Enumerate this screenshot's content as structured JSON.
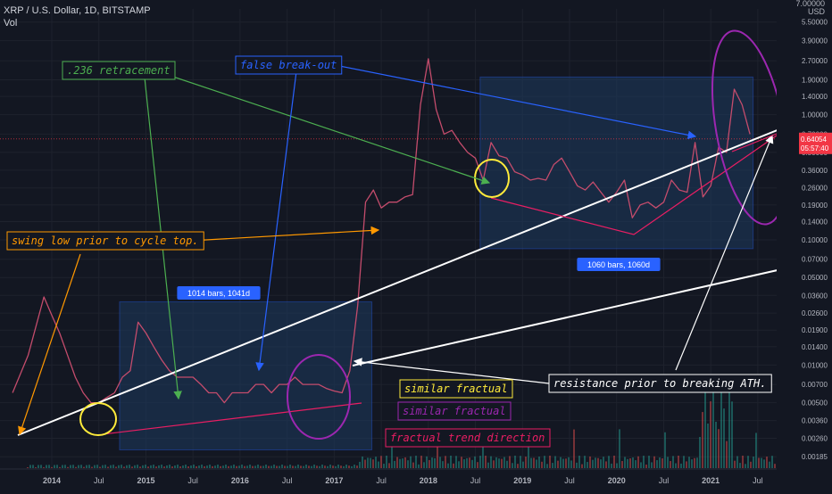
{
  "header": {
    "symbol_line": "XRP / U.S. Dollar, 1D, BITSTAMP",
    "vol_label": "Vol",
    "currency": "USD",
    "corner_tick": "7.00000"
  },
  "price_badge": {
    "price": "0.64054",
    "countdown": "05:57:40"
  },
  "colors": {
    "background": "#131722",
    "price": "#c44c6c",
    "white_line": "#ffffff",
    "green": "#4caf50",
    "blue": "#2962ff",
    "orange": "#ff9800",
    "yellow": "#ffeb3b",
    "purple": "#9c27b0",
    "pink": "#e91e63",
    "box_fill": "#1e3a5f",
    "badge": "#f23645"
  },
  "chart_data": {
    "type": "line",
    "title": "XRP / U.S. Dollar, 1D, BITSTAMP",
    "y_scale": "log",
    "ylim": [
      0.0015,
      7.0
    ],
    "y_ticks": [
      "5.50000",
      "3.90000",
      "2.70000",
      "1.90000",
      "1.40000",
      "1.00000",
      "0.70000",
      "0.50000",
      "0.36000",
      "0.26000",
      "0.19000",
      "0.14000",
      "0.10000",
      "0.07000",
      "0.05000",
      "0.03600",
      "0.02600",
      "0.01900",
      "0.01400",
      "0.01000",
      "0.00700",
      "0.00500",
      "0.00360",
      "0.00260",
      "0.00185"
    ],
    "x_ticks": [
      "2014",
      "Jul",
      "2015",
      "Jul",
      "2016",
      "Jul",
      "2017",
      "Jul",
      "2018",
      "Jul",
      "2019",
      "Jul",
      "2020",
      "Jul",
      "2021",
      "Jul"
    ],
    "series": [
      {
        "x": [
          "2013-08",
          "2013-10",
          "2013-12",
          "2014-01",
          "2014-02",
          "2014-03",
          "2014-04",
          "2014-05",
          "2014-06",
          "2014-07",
          "2014-08",
          "2014-09",
          "2014-10",
          "2014-11",
          "2014-12",
          "2015-01",
          "2015-02",
          "2015-03",
          "2015-04",
          "2015-05",
          "2015-06",
          "2015-07",
          "2015-08",
          "2015-09",
          "2015-10",
          "2015-11",
          "2015-12",
          "2016-01",
          "2016-02",
          "2016-03",
          "2016-04",
          "2016-05",
          "2016-06",
          "2016-07",
          "2016-08",
          "2016-09",
          "2016-10",
          "2016-11",
          "2016-12",
          "2017-01",
          "2017-02",
          "2017-03",
          "2017-04",
          "2017-05",
          "2017-06",
          "2017-07",
          "2017-08",
          "2017-09",
          "2017-10",
          "2017-11",
          "2017-12",
          "2018-01",
          "2018-02",
          "2018-03",
          "2018-04",
          "2018-05",
          "2018-06",
          "2018-07",
          "2018-08",
          "2018-09",
          "2018-10",
          "2018-11",
          "2018-12",
          "2019-01",
          "2019-02",
          "2019-03",
          "2019-04",
          "2019-05",
          "2019-06",
          "2019-07",
          "2019-08",
          "2019-09",
          "2019-10",
          "2019-11",
          "2019-12",
          "2020-01",
          "2020-02",
          "2020-03",
          "2020-04",
          "2020-05",
          "2020-06",
          "2020-07",
          "2020-08",
          "2020-09",
          "2020-10",
          "2020-11",
          "2020-12",
          "2021-01",
          "2021-02",
          "2021-03",
          "2021-04",
          "2021-05",
          "2021-06"
        ],
        "values": [
          0.006,
          0.012,
          0.035,
          0.025,
          0.018,
          0.012,
          0.008,
          0.006,
          0.005,
          0.005,
          0.0055,
          0.006,
          0.008,
          0.009,
          0.022,
          0.018,
          0.014,
          0.011,
          0.009,
          0.008,
          0.008,
          0.008,
          0.007,
          0.006,
          0.006,
          0.005,
          0.006,
          0.006,
          0.006,
          0.007,
          0.007,
          0.006,
          0.007,
          0.007,
          0.008,
          0.007,
          0.007,
          0.007,
          0.0065,
          0.0062,
          0.006,
          0.009,
          0.03,
          0.2,
          0.25,
          0.18,
          0.2,
          0.2,
          0.22,
          0.23,
          1.2,
          2.8,
          1.1,
          0.7,
          0.75,
          0.6,
          0.5,
          0.45,
          0.3,
          0.6,
          0.47,
          0.45,
          0.35,
          0.33,
          0.3,
          0.31,
          0.3,
          0.4,
          0.45,
          0.35,
          0.27,
          0.25,
          0.29,
          0.24,
          0.2,
          0.24,
          0.3,
          0.15,
          0.19,
          0.2,
          0.18,
          0.2,
          0.3,
          0.25,
          0.24,
          0.6,
          0.22,
          0.27,
          0.55,
          0.5,
          1.6,
          1.2,
          0.7
        ]
      }
    ]
  },
  "annotations": {
    "retracement": ".236 retracement",
    "false_breakout": "false break-out",
    "swing_low": "swing low prior to cycle top.",
    "similar_yellow": "similar fractual",
    "similar_purple": "similar fractual",
    "trend_direction": "fractual trend direction",
    "resistance": "resistance prior to breaking ATH.",
    "range_1": "1014 bars, 1041d",
    "range_2": "1060 bars, 1060d"
  }
}
